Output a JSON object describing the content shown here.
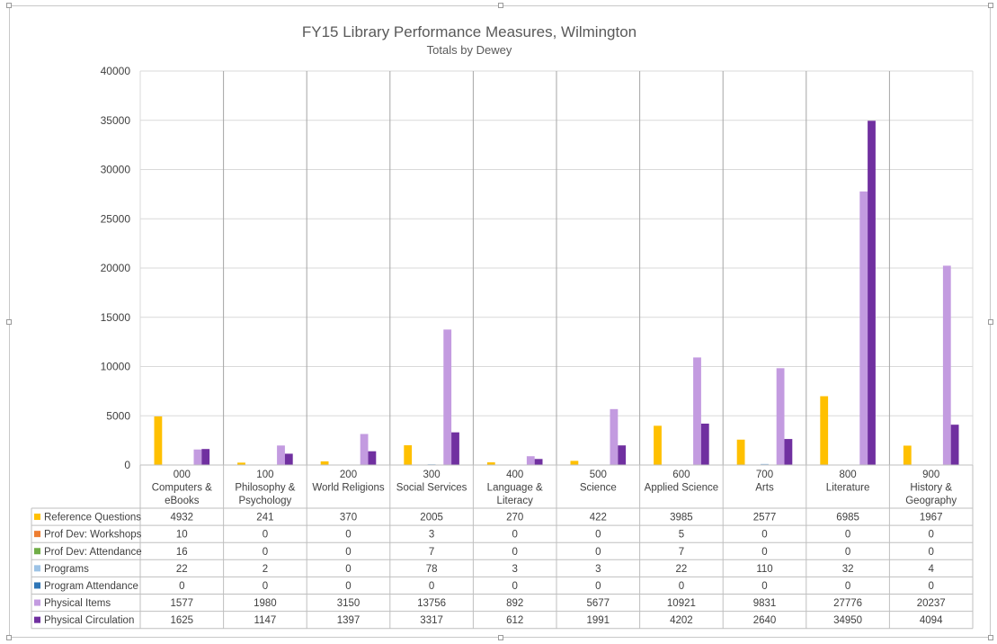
{
  "chart_data": {
    "type": "bar",
    "title": "FY15 Library Performance Measures, Wilmington",
    "subtitle": "Totals by Dewey",
    "ylim": [
      0,
      40000
    ],
    "yticks": [
      "0",
      "5000",
      "10000",
      "15000",
      "20000",
      "25000",
      "30000",
      "35000",
      "40000"
    ],
    "categories": [
      [
        "000",
        "Computers &",
        "eBooks"
      ],
      [
        "100",
        "Philosophy &",
        "Psychology"
      ],
      [
        "200",
        "World Religions"
      ],
      [
        "300",
        "Social Services"
      ],
      [
        "400",
        "Language &",
        "Literacy"
      ],
      [
        "500",
        "Science"
      ],
      [
        "600",
        "Applied Science"
      ],
      [
        "700",
        "Arts"
      ],
      [
        "800",
        "Literature"
      ],
      [
        "900",
        "History &",
        "Geography"
      ]
    ],
    "series": [
      {
        "name": "Reference Questions",
        "color": "#FFC000",
        "values": [
          4932,
          241,
          370,
          2005,
          270,
          422,
          3985,
          2577,
          6985,
          1967
        ]
      },
      {
        "name": "Prof Dev: Workshops",
        "color": "#ED7D31",
        "values": [
          10,
          0,
          0,
          3,
          0,
          0,
          5,
          0,
          0,
          0
        ]
      },
      {
        "name": "Prof Dev: Attendance",
        "color": "#70AD47",
        "values": [
          16,
          0,
          0,
          7,
          0,
          0,
          7,
          0,
          0,
          0
        ]
      },
      {
        "name": "Programs",
        "color": "#9DC3E6",
        "values": [
          22,
          2,
          0,
          78,
          3,
          3,
          22,
          110,
          32,
          4
        ]
      },
      {
        "name": "Program Attendance",
        "color": "#2E75B6",
        "values": [
          0,
          0,
          0,
          0,
          0,
          0,
          0,
          0,
          0,
          0
        ]
      },
      {
        "name": "Physical Items",
        "color": "#C39BE0",
        "values": [
          1577,
          1980,
          3150,
          13756,
          892,
          5677,
          10921,
          9831,
          27776,
          20237
        ]
      },
      {
        "name": "Physical Circulation",
        "color": "#7030A0",
        "values": [
          1625,
          1147,
          1397,
          3317,
          612,
          1991,
          4202,
          2640,
          34950,
          4094
        ]
      }
    ],
    "grid": true,
    "legend": "data-table"
  }
}
